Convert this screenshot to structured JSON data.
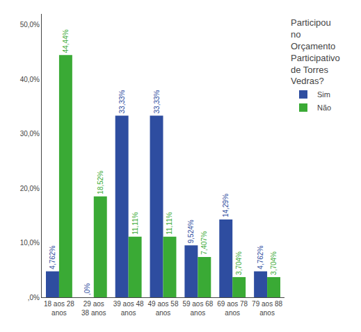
{
  "chart_data": {
    "type": "bar",
    "categories": [
      "18 aos 28\nanos",
      "29 aos\n38 anos",
      "39 aos 48\nanos",
      "49 aos 58\nanos",
      "59 aos 68\nanos",
      "69 aos 78\nanos",
      "79 aos 88\nanos"
    ],
    "series": [
      {
        "name": "Sim",
        "color": "#2E4DA0",
        "values": [
          4.762,
          0.0,
          33.33,
          33.33,
          9.524,
          14.29,
          4.762
        ],
        "value_labels": [
          "4,762%",
          ",0%",
          "33,33%",
          "33,33%",
          "9,524%",
          "14,29%",
          "4,762%"
        ]
      },
      {
        "name": "Não",
        "color": "#3AAA35",
        "values": [
          44.44,
          18.52,
          11.11,
          11.11,
          7.407,
          3.704,
          3.704
        ],
        "value_labels": [
          "44,44%",
          "18,52%",
          "11,11%",
          "11,11%",
          "7,407%",
          "3,704%",
          "3,704%"
        ]
      }
    ],
    "legend_title": "Participou\nno\nOrçamento\nParticipativo\nde Torres\nVedras?",
    "ylim": [
      0,
      52
    ],
    "yticks": [
      {
        "value": 0,
        "label": ",0%"
      },
      {
        "value": 10,
        "label": "10,0%"
      },
      {
        "value": 20,
        "label": "20,0%"
      },
      {
        "value": 30,
        "label": "30,0%"
      },
      {
        "value": 40,
        "label": "40,0%"
      },
      {
        "value": 50,
        "label": "50,0%"
      }
    ],
    "grid": false,
    "data_labels": true,
    "legend": "right"
  }
}
